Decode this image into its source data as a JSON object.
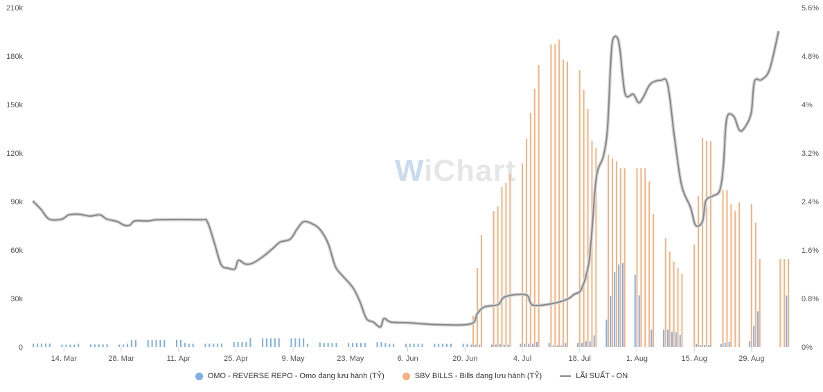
{
  "watermark": {
    "w": "W",
    "rest": "iChart"
  },
  "legend": [
    {
      "label": "OMO - REVERSE REPO - Omo đang lưu hành (TỶ)",
      "color": "#7eaee3",
      "kind": "dot"
    },
    {
      "label": "SBV BILLS - Bills đang lưu hành (TỶ)",
      "color": "#f7b07f",
      "kind": "dot"
    },
    {
      "label": "LÃI SUẤT - ON",
      "color": "#888888",
      "kind": "line"
    }
  ],
  "chart_data": {
    "type": "bar+line",
    "x_unit": "days since 14 Mar",
    "x_range": [
      -8,
      178
    ],
    "x_ticks": [
      {
        "day": 0,
        "label": "14. Mar"
      },
      {
        "day": 14,
        "label": "28. Mar"
      },
      {
        "day": 28,
        "label": "11. Apr"
      },
      {
        "day": 42,
        "label": "25. Apr"
      },
      {
        "day": 56,
        "label": "9. May"
      },
      {
        "day": 70,
        "label": "23. May"
      },
      {
        "day": 84,
        "label": "6. Jun"
      },
      {
        "day": 98,
        "label": "20. Jun"
      },
      {
        "day": 112,
        "label": "4. Jul"
      },
      {
        "day": 126,
        "label": "18. Jul"
      },
      {
        "day": 140,
        "label": "1. Aug"
      },
      {
        "day": 154,
        "label": "15. Aug"
      },
      {
        "day": 168,
        "label": "29. Aug"
      }
    ],
    "y_left": {
      "range": [
        0,
        210
      ],
      "ticks": [
        0,
        30,
        60,
        90,
        120,
        150,
        180,
        210
      ],
      "labels": [
        "0",
        "30k",
        "60k",
        "90k",
        "120k",
        "150k",
        "180k",
        "210k"
      ]
    },
    "y_right": {
      "range": [
        0,
        5.6
      ],
      "ticks": [
        0,
        0.8,
        1.6,
        2.4,
        3.2,
        4.0,
        4.8,
        5.6
      ],
      "labels": [
        "0%",
        "0.8%",
        "1.6%",
        "2.4%",
        "3.2%",
        "4%",
        "4.8%",
        "5.6%"
      ]
    },
    "grid": false,
    "legend_position": "bottom",
    "series": [
      {
        "name": "OMO - REVERSE REPO - Omo đang lưu hành (TỶ)",
        "type": "bar",
        "axis": "left",
        "unit": "k tỷ",
        "points": [
          [
            -7,
            2.1
          ],
          [
            -6,
            2.1
          ],
          [
            -5,
            2.1
          ],
          [
            -4,
            2.1
          ],
          [
            -3,
            2.1
          ],
          [
            0,
            1.5
          ],
          [
            1,
            1.5
          ],
          [
            2,
            1.5
          ],
          [
            3,
            1.5
          ],
          [
            4,
            2
          ],
          [
            7,
            1.6
          ],
          [
            8,
            1.6
          ],
          [
            9,
            1.6
          ],
          [
            10,
            1.6
          ],
          [
            11,
            1.6
          ],
          [
            14,
            1.5
          ],
          [
            15,
            1.5
          ],
          [
            16,
            2
          ],
          [
            17,
            4.4
          ],
          [
            18,
            4.4
          ],
          [
            21,
            4.4
          ],
          [
            22,
            4.4
          ],
          [
            23,
            4.4
          ],
          [
            24,
            4.4
          ],
          [
            25,
            4.4
          ],
          [
            28,
            4.4
          ],
          [
            29,
            4.4
          ],
          [
            30,
            2.5
          ],
          [
            31,
            2
          ],
          [
            32,
            2
          ],
          [
            35,
            2.1
          ],
          [
            36,
            2.1
          ],
          [
            37,
            2.1
          ],
          [
            38,
            2.1
          ],
          [
            39,
            2.1
          ],
          [
            42,
            3
          ],
          [
            43,
            3
          ],
          [
            44,
            3
          ],
          [
            45,
            3
          ],
          [
            46,
            5.6
          ],
          [
            49,
            5.4
          ],
          [
            50,
            5.4
          ],
          [
            51,
            5.4
          ],
          [
            52,
            5.4
          ],
          [
            53,
            5.4
          ],
          [
            56,
            5.4
          ],
          [
            57,
            5.4
          ],
          [
            58,
            5.4
          ],
          [
            59,
            5.4
          ],
          [
            60,
            2
          ],
          [
            63,
            2.8
          ],
          [
            64,
            2.5
          ],
          [
            65,
            2.5
          ],
          [
            66,
            2.5
          ],
          [
            67,
            2.5
          ],
          [
            70,
            2.5
          ],
          [
            71,
            2.5
          ],
          [
            72,
            2.5
          ],
          [
            73,
            2.5
          ],
          [
            74,
            2.5
          ],
          [
            77,
            3
          ],
          [
            78,
            3
          ],
          [
            79,
            2.5
          ],
          [
            80,
            2
          ],
          [
            81,
            2
          ],
          [
            84,
            2
          ],
          [
            85,
            2
          ],
          [
            86,
            2
          ],
          [
            87,
            2
          ],
          [
            88,
            2
          ],
          [
            91,
            2
          ],
          [
            92,
            2
          ],
          [
            93,
            2
          ],
          [
            94,
            2
          ],
          [
            95,
            2
          ],
          [
            98,
            2
          ],
          [
            99,
            2
          ],
          [
            100,
            1.5
          ],
          [
            101,
            1.5
          ],
          [
            102,
            1.5
          ],
          [
            105,
            1.5
          ],
          [
            106,
            1.5
          ],
          [
            107,
            2
          ],
          [
            108,
            1.5
          ],
          [
            109,
            1.5
          ],
          [
            112,
            2
          ],
          [
            113,
            2
          ],
          [
            114,
            2
          ],
          [
            115,
            2
          ],
          [
            116,
            3
          ],
          [
            119,
            2.5
          ],
          [
            120,
            1
          ],
          [
            121,
            1
          ],
          [
            122,
            1
          ],
          [
            123,
            2.5
          ],
          [
            126,
            2.5
          ],
          [
            127,
            2.5
          ],
          [
            128,
            3.5
          ],
          [
            129,
            3.5
          ],
          [
            130,
            7.1
          ],
          [
            133,
            16.9
          ],
          [
            134,
            31.4
          ],
          [
            135,
            46.4
          ],
          [
            136,
            51
          ],
          [
            137,
            51.9
          ],
          [
            140,
            44.7
          ],
          [
            141,
            32
          ],
          [
            144,
            10.8
          ],
          [
            147,
            10.8
          ],
          [
            148,
            10.8
          ],
          [
            149,
            9.4
          ],
          [
            150,
            9
          ],
          [
            151,
            7.3
          ],
          [
            155,
            1.9
          ],
          [
            156,
            1.3
          ],
          [
            157,
            1.3
          ],
          [
            158,
            1.3
          ],
          [
            161,
            1.9
          ],
          [
            162,
            2.7
          ],
          [
            163,
            3.1
          ],
          [
            168,
            3.6
          ],
          [
            169,
            13
          ],
          [
            170,
            22.1
          ],
          [
            177,
            31.9
          ]
        ]
      },
      {
        "name": "SBV BILLS - Bills đang lưu hành (TỶ)",
        "type": "bar",
        "axis": "left",
        "unit": "k tỷ",
        "points": [
          [
            100,
            19.3
          ],
          [
            101,
            48.9
          ],
          [
            102,
            69.4
          ],
          [
            105,
            84
          ],
          [
            106,
            87
          ],
          [
            107,
            99
          ],
          [
            108,
            101.6
          ],
          [
            109,
            107
          ],
          [
            112,
            113.6
          ],
          [
            113,
            129
          ],
          [
            114,
            144.9
          ],
          [
            115,
            159.9
          ],
          [
            116,
            174.4
          ],
          [
            119,
            187.3
          ],
          [
            120,
            187.3
          ],
          [
            121,
            190.3
          ],
          [
            122,
            177.9
          ],
          [
            123,
            176.6
          ],
          [
            126,
            171.4
          ],
          [
            127,
            159
          ],
          [
            128,
            147.4
          ],
          [
            129,
            127.7
          ],
          [
            130,
            123
          ],
          [
            133,
            119
          ],
          [
            134,
            116.6
          ],
          [
            135,
            114.9
          ],
          [
            136,
            110.6
          ],
          [
            137,
            110.6
          ],
          [
            140,
            110.6
          ],
          [
            141,
            110.6
          ],
          [
            142,
            110.6
          ],
          [
            143,
            102.4
          ],
          [
            144,
            82.3
          ],
          [
            147,
            67.3
          ],
          [
            148,
            59.1
          ],
          [
            149,
            52.9
          ],
          [
            150,
            49
          ],
          [
            151,
            45.4
          ],
          [
            154,
            63.4
          ],
          [
            155,
            93.4
          ],
          [
            156,
            129.4
          ],
          [
            157,
            127.7
          ],
          [
            158,
            127.3
          ],
          [
            161,
            97.1
          ],
          [
            162,
            97.1
          ],
          [
            163,
            88.4
          ],
          [
            164,
            84.3
          ],
          [
            165,
            89.4
          ],
          [
            168,
            88.4
          ],
          [
            169,
            76.9
          ],
          [
            170,
            54.4
          ],
          [
            175,
            54.4
          ],
          [
            176,
            54.4
          ],
          [
            177,
            54.4
          ]
        ]
      },
      {
        "name": "LÃI SUẤT - ON",
        "type": "line",
        "axis": "right",
        "unit": "%",
        "points": [
          [
            -7.6,
            2.41
          ],
          [
            -5.6,
            2.27
          ],
          [
            -3.6,
            2.11
          ],
          [
            -0.5,
            2.11
          ],
          [
            1.2,
            2.18
          ],
          [
            3.7,
            2.19
          ],
          [
            6.3,
            2.16
          ],
          [
            8.8,
            2.18
          ],
          [
            10.5,
            2.11
          ],
          [
            13.0,
            2.07
          ],
          [
            14.7,
            2.01
          ],
          [
            16.1,
            2.01
          ],
          [
            17.3,
            2.08
          ],
          [
            20.6,
            2.08
          ],
          [
            23.2,
            2.1
          ],
          [
            33.3,
            2.1
          ],
          [
            35.0,
            2.07
          ],
          [
            36.7,
            1.73
          ],
          [
            38.4,
            1.36
          ],
          [
            40.1,
            1.3
          ],
          [
            41.8,
            1.29
          ],
          [
            42.6,
            1.43
          ],
          [
            44.3,
            1.37
          ],
          [
            46.0,
            1.38
          ],
          [
            48.6,
            1.49
          ],
          [
            51.1,
            1.63
          ],
          [
            52.8,
            1.73
          ],
          [
            55.3,
            1.78
          ],
          [
            57.0,
            1.95
          ],
          [
            58.7,
            2.07
          ],
          [
            61.3,
            2.01
          ],
          [
            62.9,
            1.91
          ],
          [
            64.6,
            1.7
          ],
          [
            66.3,
            1.33
          ],
          [
            68.0,
            1.18
          ],
          [
            70.6,
            0.98
          ],
          [
            72.3,
            0.75
          ],
          [
            73.9,
            0.47
          ],
          [
            75.6,
            0.41
          ],
          [
            77.3,
            0.33
          ],
          [
            78.2,
            0.47
          ],
          [
            79.9,
            0.41
          ],
          [
            84.1,
            0.4
          ],
          [
            90.9,
            0.37
          ],
          [
            99.3,
            0.38
          ],
          [
            101.0,
            0.55
          ],
          [
            102.7,
            0.66
          ],
          [
            106.1,
            0.7
          ],
          [
            107.8,
            0.83
          ],
          [
            112.9,
            0.86
          ],
          [
            114.6,
            0.69
          ],
          [
            119.6,
            0.72
          ],
          [
            123.0,
            0.79
          ],
          [
            124.7,
            0.87
          ],
          [
            126.4,
            0.95
          ],
          [
            128.1,
            1.33
          ],
          [
            128.9,
            1.84
          ],
          [
            130.1,
            2.81
          ],
          [
            131.8,
            3.15
          ],
          [
            132.8,
            3.61
          ],
          [
            133.5,
            4.58
          ],
          [
            134.0,
            5.04
          ],
          [
            135.0,
            5.12
          ],
          [
            135.8,
            4.93
          ],
          [
            137.1,
            4.18
          ],
          [
            139.1,
            4.17
          ],
          [
            140.4,
            4.03
          ],
          [
            141.6,
            4.13
          ],
          [
            143.3,
            4.34
          ],
          [
            145.8,
            4.4
          ],
          [
            147.5,
            4.33
          ],
          [
            149.2,
            3.44
          ],
          [
            150.9,
            2.67
          ],
          [
            153.1,
            2.3
          ],
          [
            154.3,
            2.01
          ],
          [
            156.0,
            2.07
          ],
          [
            156.8,
            2.41
          ],
          [
            158.5,
            2.49
          ],
          [
            160.2,
            2.58
          ],
          [
            161.1,
            2.98
          ],
          [
            161.9,
            3.76
          ],
          [
            163.6,
            3.81
          ],
          [
            165.0,
            3.58
          ],
          [
            166.2,
            3.61
          ],
          [
            167.9,
            3.86
          ],
          [
            168.7,
            4.38
          ],
          [
            170.4,
            4.41
          ],
          [
            172.4,
            4.58
          ],
          [
            174.6,
            5.21
          ]
        ]
      }
    ]
  }
}
